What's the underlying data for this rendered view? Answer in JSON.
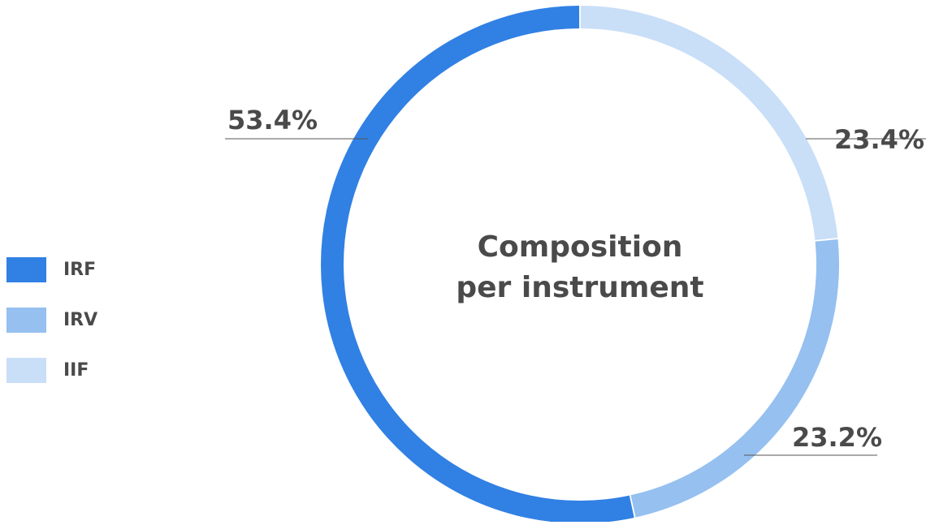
{
  "colors": {
    "IRF": "#3180e4",
    "IRV": "#95c0f0",
    "IIF": "#c9def7",
    "leader_line": "#555555",
    "text": "#4a4a4a"
  },
  "chart_data": {
    "type": "pie",
    "variant": "donut",
    "title_lines": [
      "Composition",
      "per instrument"
    ],
    "legend": [
      "IRF",
      "IRV",
      "IIF"
    ],
    "legend_position": "left",
    "slices": [
      {
        "name": "IIF",
        "value": 23.4,
        "label": "23.4%"
      },
      {
        "name": "IRV",
        "value": 23.2,
        "label": "23.2%"
      },
      {
        "name": "IRF",
        "value": 53.4,
        "label": "53.4%"
      }
    ]
  }
}
